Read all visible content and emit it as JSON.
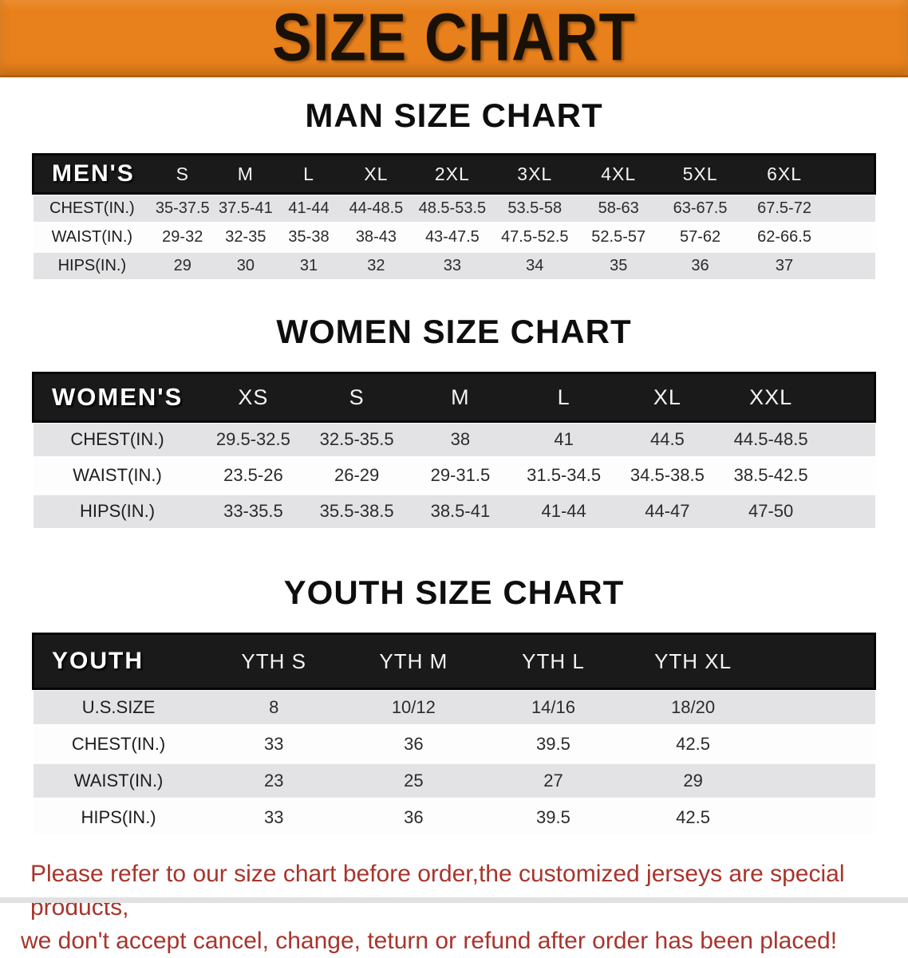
{
  "banner": {
    "title": "SIZE CHART"
  },
  "colors": {
    "banner_orange": "#e8811c",
    "header_black": "#1a1a1a",
    "stripe_gray": "#e3e3e6",
    "notice_red": "#a8342c"
  },
  "chart_data": [
    {
      "type": "table",
      "title": "MAN SIZE CHART",
      "corner_label": "MEN'S",
      "columns": [
        "S",
        "M",
        "L",
        "XL",
        "2XL",
        "3XL",
        "4XL",
        "5XL",
        "6XL"
      ],
      "rows": [
        {
          "label": "CHEST(IN.)",
          "values": [
            "35-37.5",
            "37.5-41",
            "41-44",
            "44-48.5",
            "48.5-53.5",
            "53.5-58",
            "58-63",
            "63-67.5",
            "67.5-72"
          ]
        },
        {
          "label": "WAIST(IN.)",
          "values": [
            "29-32",
            "32-35",
            "35-38",
            "38-43",
            "43-47.5",
            "47.5-52.5",
            "52.5-57",
            "57-62",
            "62-66.5"
          ]
        },
        {
          "label": "HIPS(IN.)",
          "values": [
            "29",
            "30",
            "31",
            "32",
            "33",
            "34",
            "35",
            "36",
            "37"
          ]
        }
      ]
    },
    {
      "type": "table",
      "title": "WOMEN SIZE CHART",
      "corner_label": "WOMEN'S",
      "columns": [
        "XS",
        "S",
        "M",
        "L",
        "XL",
        "XXL"
      ],
      "rows": [
        {
          "label": "CHEST(IN.)",
          "values": [
            "29.5-32.5",
            "32.5-35.5",
            "38",
            "41",
            "44.5",
            "44.5-48.5"
          ]
        },
        {
          "label": "WAIST(IN.)",
          "values": [
            "23.5-26",
            "26-29",
            "29-31.5",
            "31.5-34.5",
            "34.5-38.5",
            "38.5-42.5"
          ]
        },
        {
          "label": "HIPS(IN.)",
          "values": [
            "33-35.5",
            "35.5-38.5",
            "38.5-41",
            "41-44",
            "44-47",
            "47-50"
          ]
        }
      ]
    },
    {
      "type": "table",
      "title": "YOUTH SIZE CHART",
      "corner_label": "YOUTH",
      "columns": [
        "YTH S",
        "YTH M",
        "YTH L",
        "YTH XL"
      ],
      "rows": [
        {
          "label": "U.S.SIZE",
          "values": [
            "8",
            "10/12",
            "14/16",
            "18/20"
          ]
        },
        {
          "label": "CHEST(IN.)",
          "values": [
            "33",
            "36",
            "39.5",
            "42.5"
          ]
        },
        {
          "label": "WAIST(IN.)",
          "values": [
            "23",
            "25",
            "27",
            "29"
          ]
        },
        {
          "label": "HIPS(IN.)",
          "values": [
            "33",
            "36",
            "39.5",
            "42.5"
          ]
        }
      ]
    }
  ],
  "footer": {
    "line1": "Please refer to our size chart before order,the customized jerseys are special products,",
    "line2": "we don't accept cancel, change, teturn or refund after order has been placed!"
  }
}
